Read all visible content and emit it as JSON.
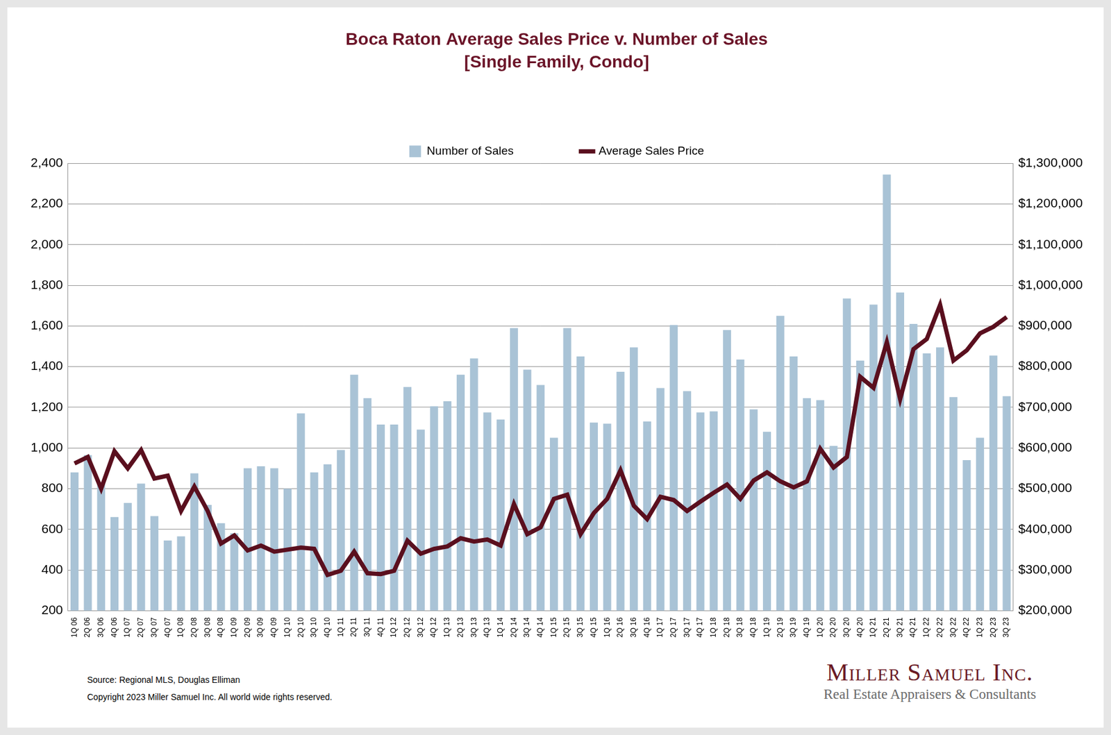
{
  "chart_data": {
    "type": "bar",
    "title": "Boca Raton Average Sales Price v. Number of Sales",
    "subtitle": "[Single Family, Condo]",
    "source": "Source: Regional MLS, Douglas Elliman",
    "copyright": "Copyright 2023 Miller Samuel Inc.  All world wide rights reserved.",
    "brand": "Miller Samuel Inc.",
    "brand_tagline": "Real Estate Appraisers & Consultants",
    "categories": [
      "1Q 06",
      "2Q 06",
      "3Q 06",
      "4Q 06",
      "1Q 07",
      "2Q 07",
      "3Q 07",
      "4Q 07",
      "1Q 08",
      "2Q 08",
      "3Q 08",
      "4Q 08",
      "1Q 09",
      "2Q 09",
      "3Q 09",
      "4Q 09",
      "1Q 10",
      "2Q 10",
      "3Q 10",
      "4Q 10",
      "1Q 11",
      "2Q 11",
      "3Q 11",
      "4Q 11",
      "1Q 12",
      "2Q 12",
      "3Q 12",
      "4Q 12",
      "1Q 13",
      "2Q 13",
      "3Q 13",
      "4Q 13",
      "1Q 14",
      "2Q 14",
      "3Q 14",
      "4Q 14",
      "1Q 15",
      "2Q 15",
      "3Q 15",
      "4Q 15",
      "1Q 16",
      "2Q 16",
      "3Q 16",
      "4Q 16",
      "1Q 17",
      "2Q 17",
      "3Q 17",
      "4Q 17",
      "1Q 18",
      "2Q 18",
      "3Q 18",
      "4Q 18",
      "1Q 19",
      "2Q 19",
      "3Q 19",
      "4Q 19",
      "1Q 20",
      "2Q 20",
      "3Q 20",
      "4Q 20",
      "1Q 21",
      "2Q 21",
      "3Q 21",
      "4Q 21",
      "1Q 22",
      "2Q 22",
      "3Q 22",
      "4Q 22",
      "1Q 23",
      "2Q 23",
      "3Q 23"
    ],
    "series": [
      {
        "name": "Number of Sales",
        "type": "bar",
        "color": "#a9c3d6",
        "axis": "y",
        "values": [
          880,
          965,
          830,
          660,
          730,
          825,
          665,
          545,
          565,
          875,
          720,
          630,
          580,
          900,
          910,
          900,
          800,
          1170,
          880,
          920,
          990,
          1360,
          1245,
          1115,
          1115,
          1300,
          1090,
          1205,
          1230,
          1360,
          1440,
          1175,
          1140,
          1590,
          1385,
          1310,
          1050,
          1590,
          1450,
          1125,
          1120,
          1375,
          1495,
          1130,
          1295,
          1605,
          1280,
          1175,
          1180,
          1580,
          1435,
          1190,
          1080,
          1650,
          1450,
          1245,
          1235,
          1010,
          1735,
          1430,
          1705,
          2345,
          1765,
          1610,
          1465,
          1495,
          1250,
          940,
          1050,
          1455,
          1255
        ]
      },
      {
        "name": "Average Sales Price",
        "type": "line",
        "color": "#5a0f1e",
        "axis": "y2",
        "values": [
          562000,
          578000,
          500000,
          592000,
          550000,
          595000,
          525000,
          532000,
          445000,
          505000,
          445000,
          365000,
          385000,
          348000,
          360000,
          345000,
          350000,
          355000,
          352000,
          288000,
          298000,
          345000,
          292000,
          290000,
          298000,
          372000,
          340000,
          352000,
          358000,
          378000,
          370000,
          375000,
          360000,
          462000,
          388000,
          405000,
          475000,
          485000,
          388000,
          440000,
          475000,
          545000,
          458000,
          425000,
          480000,
          472000,
          445000,
          468000,
          490000,
          510000,
          475000,
          520000,
          540000,
          518000,
          503000,
          518000,
          598000,
          552000,
          578000,
          775000,
          748000,
          860000,
          720000,
          843000,
          868000,
          952000,
          815000,
          840000,
          882000,
          898000,
          922000
        ]
      }
    ],
    "ylim": [
      200,
      2400
    ],
    "yticks": [
      200,
      400,
      600,
      800,
      {
        "value": 1000,
        "label": "1,000"
      },
      {
        "value": 1200,
        "label": "1,200"
      },
      {
        "value": 1400,
        "label": "1,400"
      },
      {
        "value": 1600,
        "label": "1,600"
      },
      {
        "value": 1800,
        "label": "1,800"
      },
      {
        "value": 2000,
        "label": "2,000"
      },
      {
        "value": 2200,
        "label": "2,200"
      },
      {
        "value": 2400,
        "label": "2,400"
      }
    ],
    "y2lim": [
      200000,
      1300000
    ],
    "y2ticks": [
      {
        "value": 200000,
        "label": "$200,000"
      },
      {
        "value": 300000,
        "label": "$300,000"
      },
      {
        "value": 400000,
        "label": "$400,000"
      },
      {
        "value": 500000,
        "label": "$500,000"
      },
      {
        "value": 600000,
        "label": "$600,000"
      },
      {
        "value": 700000,
        "label": "$700,000"
      },
      {
        "value": 800000,
        "label": "$800,000"
      },
      {
        "value": 900000,
        "label": "$900,000"
      },
      {
        "value": 1000000,
        "label": "$1,000,000"
      },
      {
        "value": 1100000,
        "label": "$1,100,000"
      },
      {
        "value": 1200000,
        "label": "$1,200,000"
      },
      {
        "value": 1300000,
        "label": "$1,300,000"
      }
    ],
    "grid": true,
    "legend": "top"
  }
}
